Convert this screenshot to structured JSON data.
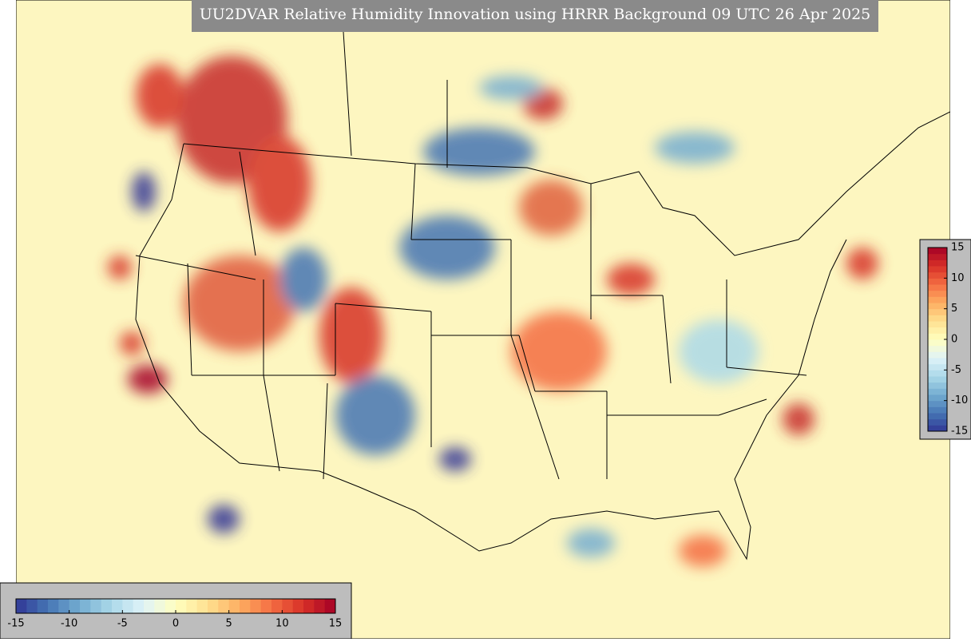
{
  "title": "UU2DVAR Relative Humidity Innovation using HRRR Background 09 UTC 26 Apr 2025",
  "colormap": [
    "#313695",
    "#4575b4",
    "#74add1",
    "#abd9e9",
    "#e0f3f8",
    "#ffffbf",
    "#fee090",
    "#fdae61",
    "#f46d43",
    "#d73027",
    "#a50026"
  ],
  "colorbars": [
    {
      "orientation": "horizontal",
      "range": [
        -15,
        15
      ],
      "ticks": [
        -15,
        -10,
        -5,
        0,
        5,
        10,
        15
      ]
    },
    {
      "orientation": "vertical",
      "range": [
        -15,
        15
      ],
      "ticks": [
        -15,
        -10,
        -5,
        0,
        5,
        10,
        15
      ]
    }
  ]
}
